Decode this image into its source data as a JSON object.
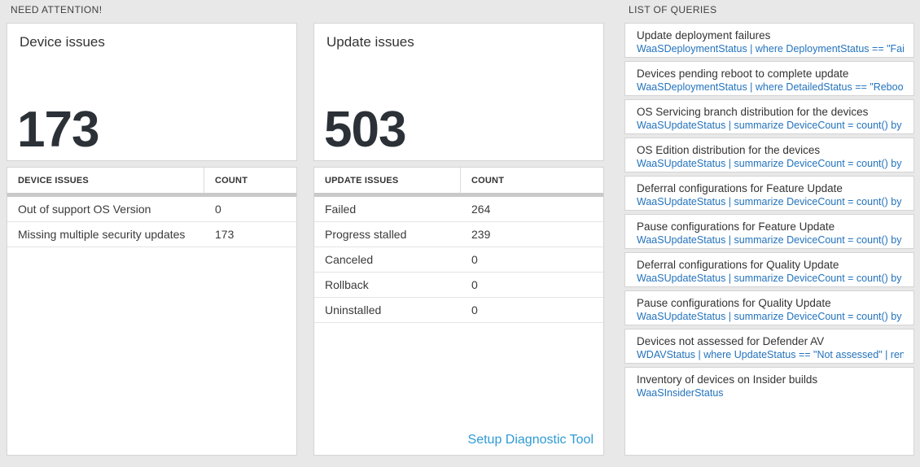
{
  "colors": {
    "query_link_blue": "#2373bd",
    "setup_link_blue": "#2e9bd6",
    "page_background": "#e8e8e8",
    "big_number_color": "#2b3137"
  },
  "need_attention": {
    "label": "NEED ATTENTION!",
    "device_tile": {
      "title": "Device issues",
      "value": "173"
    },
    "device_table": {
      "col1": "DEVICE ISSUES",
      "col2": "COUNT",
      "rows": [
        {
          "label": "Out of support OS Version",
          "count": "0"
        },
        {
          "label": "Missing multiple security updates",
          "count": "173"
        }
      ]
    },
    "update_tile": {
      "title": "Update issues",
      "value": "503"
    },
    "update_table": {
      "col1": "UPDATE ISSUES",
      "col2": "COUNT",
      "rows": [
        {
          "label": "Failed",
          "count": "264"
        },
        {
          "label": "Progress stalled",
          "count": "239"
        },
        {
          "label": "Canceled",
          "count": "0"
        },
        {
          "label": "Rollback",
          "count": "0"
        },
        {
          "label": "Uninstalled",
          "count": "0"
        }
      ],
      "footer_link": "Setup Diagnostic Tool"
    }
  },
  "queries_panel": {
    "label": "LIST OF QUERIES",
    "items": [
      {
        "title": "Update deployment failures",
        "query": "WaaSDeploymentStatus | where DeploymentStatus == \"Failed\" |..."
      },
      {
        "title": "Devices pending reboot to complete update",
        "query": "WaaSDeploymentStatus | where DetailedStatus == \"Reboot pend..."
      },
      {
        "title": "OS Servicing branch distribution for the devices",
        "query": "WaaSUpdateStatus | summarize DeviceCount = count() by OSSer..."
      },
      {
        "title": "OS Edition distribution for the devices",
        "query": "WaaSUpdateStatus | summarize DeviceCount = count() by OSEdit..."
      },
      {
        "title": "Deferral configurations for Feature Update",
        "query": "WaaSUpdateStatus | summarize DeviceCount = count() by Featur..."
      },
      {
        "title": "Pause configurations for Feature Update",
        "query": "WaaSUpdateStatus | summarize DeviceCount = count() by Featur..."
      },
      {
        "title": "Deferral configurations for Quality Update",
        "query": "WaaSUpdateStatus | summarize DeviceCount = count() by Qualit..."
      },
      {
        "title": "Pause configurations for Quality Update",
        "query": "WaaSUpdateStatus | summarize DeviceCount = count() by Qualit..."
      },
      {
        "title": "Devices not assessed for Defender AV",
        "query": "WDAVStatus | where UpdateStatus == \"Not assessed\" | render ta..."
      },
      {
        "title": "Inventory of devices on Insider builds",
        "query": "WaaSInsiderStatus"
      }
    ]
  }
}
